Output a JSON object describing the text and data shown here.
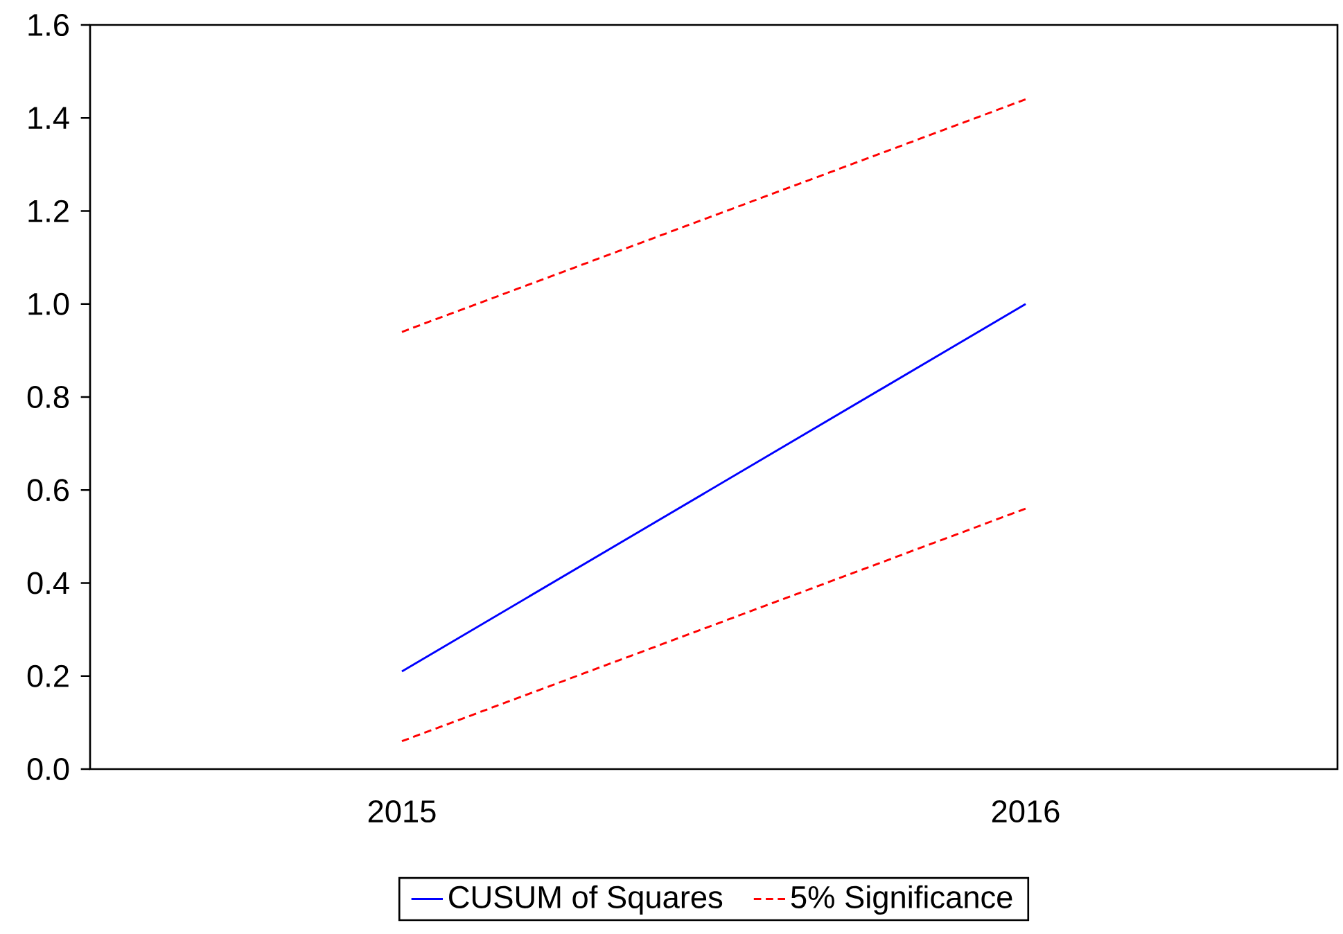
{
  "chart_data": {
    "type": "line",
    "categories": [
      "2015",
      "2016"
    ],
    "ylim": [
      0,
      1.6
    ],
    "yticks": [
      {
        "value": 0,
        "label": "0.0"
      },
      {
        "value": 0.2,
        "label": "0.2"
      },
      {
        "value": 0.4,
        "label": "0.4"
      },
      {
        "value": 0.6,
        "label": "0.6"
      },
      {
        "value": 0.8,
        "label": "0.8"
      },
      {
        "value": 1.0,
        "label": "1.0"
      },
      {
        "value": 1.2,
        "label": "1.2"
      },
      {
        "value": 1.4,
        "label": "1.4"
      },
      {
        "value": 1.6,
        "label": "1.6"
      }
    ],
    "series": [
      {
        "name": "CUSUM of Squares",
        "color": "#0000ff",
        "values": [
          0.21,
          1.0
        ],
        "line_style": "solid"
      },
      {
        "name": "5% Significance",
        "color": "#ff0000",
        "values": [
          0.94,
          1.44
        ],
        "line_style": "dashed"
      },
      {
        "color": "#ff0000",
        "values": [
          0.06,
          0.56
        ],
        "line_style": "dashed"
      }
    ],
    "legend": "bottom",
    "grid": false
  }
}
